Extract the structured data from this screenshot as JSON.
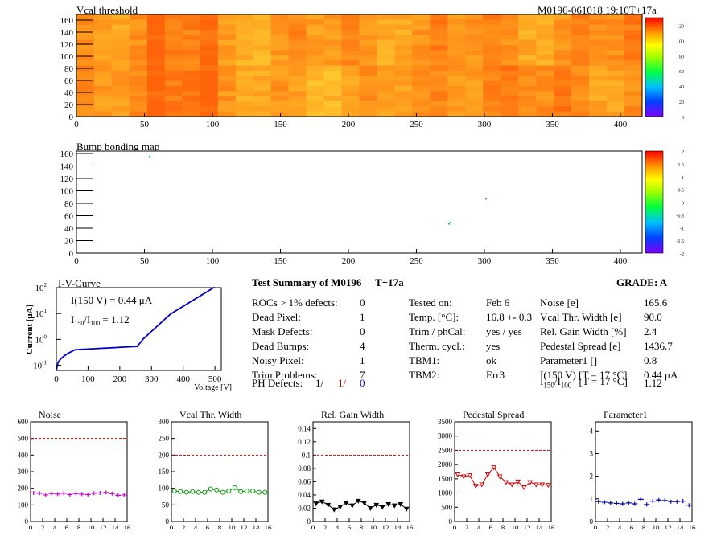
{
  "header": {
    "vcal_title": "Vcal threshold",
    "module_id": "M0196-061018.19:10T+17a",
    "bump_title": "Bump bonding map"
  },
  "maps": {
    "xticks": [
      "0",
      "50",
      "100",
      "150",
      "200",
      "250",
      "300",
      "350",
      "400"
    ],
    "yticks": [
      "0",
      "20",
      "40",
      "60",
      "80",
      "100",
      "120",
      "140",
      "160"
    ],
    "vcal_scale": [
      "0",
      "20",
      "40",
      "60",
      "80",
      "100",
      "120"
    ],
    "bump_scale": [
      "-2",
      "-1.5",
      "-1",
      "-0.5",
      "0",
      "0.5",
      "1",
      "1.5",
      "2"
    ]
  },
  "iv": {
    "title": "I-V-Curve",
    "ylabel": "Current [μA]",
    "xlabel": "Voltage [V]",
    "current_note": "I(150 V) = 0.44 μA",
    "ratio_note_i1": "I",
    "ratio_note_sub1": "150",
    "ratio_note_i2": "/I",
    "ratio_note_sub2": "100",
    "ratio_note_val": "=  1.12",
    "xticks": [
      "0",
      "100",
      "200",
      "300",
      "400",
      "500"
    ],
    "ybase": "10",
    "yexps": [
      "-1",
      "0",
      "1",
      "2"
    ]
  },
  "summary": {
    "title": "Test Summary of M0196",
    "tag": "T+17a",
    "grade": "GRADE:  A",
    "left": [
      {
        "label": "ROCs > 1% defects:",
        "value": "0"
      },
      {
        "label": "Dead Pixel:",
        "value": "1"
      },
      {
        "label": "Mask Defects:",
        "value": "0"
      },
      {
        "label": "Dead Bumps:",
        "value": "4"
      },
      {
        "label": "Noisy Pixel:",
        "value": "1"
      },
      {
        "label": "Trim Problems:",
        "value": "7"
      }
    ],
    "ph_label": "PH Defects:",
    "ph_v1": "1/",
    "ph_v2": "1/",
    "ph_v3": "0",
    "mid": [
      {
        "label": "Tested on:",
        "value": "Feb 6"
      },
      {
        "label": "Temp. [°C]:",
        "value": "16.8 +- 0.3"
      },
      {
        "label": "Trim / phCal:",
        "value": "yes / yes"
      },
      {
        "label": "Therm. cycl.:",
        "value": "yes"
      },
      {
        "label": "TBM1:",
        "value": "ok"
      },
      {
        "label": "TBM2:",
        "value": "Err3"
      }
    ],
    "right": [
      {
        "label": "Noise [e]",
        "value": "165.6"
      },
      {
        "label": "Vcal Thr. Width [e]",
        "value": "90.0"
      },
      {
        "label": "Rel. Gain Width [%]",
        "value": "2.4"
      },
      {
        "label": "Pedestal Spread [e]",
        "value": "1436.7"
      },
      {
        "label": "Parameter1 []",
        "value": "0.8"
      },
      {
        "label": "I(150 V) [T = 17 °C]",
        "value": "0.44 μA"
      }
    ],
    "ratio_i1": "I",
    "ratio_sub1": "150",
    "ratio_i2": "/I",
    "ratio_sub2": "100",
    "ratio_cond": "[T = 17 °C]",
    "ratio_value": "1.12"
  },
  "chart_data": [
    {
      "type": "scatter",
      "title": "Noise",
      "color": "#cc00cc",
      "marker": "plus",
      "x": [
        0,
        1,
        2,
        3,
        4,
        5,
        6,
        7,
        8,
        9,
        10,
        11,
        12,
        13,
        14,
        15
      ],
      "values": [
        172,
        170,
        160,
        168,
        165,
        170,
        162,
        168,
        165,
        162,
        170,
        172,
        175,
        168,
        158,
        160
      ],
      "limit": 500,
      "ylim": [
        0,
        600
      ],
      "yticks": [
        "0",
        "100",
        "200",
        "300",
        "400",
        "500",
        "600"
      ],
      "xticks": [
        "0",
        "2",
        "4",
        "6",
        "8",
        "10",
        "12",
        "14",
        "16"
      ]
    },
    {
      "type": "line",
      "title": "Vcal Thr. Width",
      "color": "#009900",
      "marker": "circle",
      "x": [
        0,
        1,
        2,
        3,
        4,
        5,
        6,
        7,
        8,
        9,
        10,
        11,
        12,
        13,
        14,
        15
      ],
      "values": [
        92,
        90,
        88,
        90,
        88,
        88,
        98,
        95,
        88,
        92,
        102,
        90,
        92,
        92,
        88,
        88
      ],
      "limit": 200,
      "ylim": [
        0,
        300
      ],
      "yticks": [
        "0",
        "50",
        "100",
        "150",
        "200",
        "250",
        "300"
      ],
      "xticks": [
        "0",
        "2",
        "4",
        "6",
        "8",
        "10",
        "12",
        "14",
        "16"
      ]
    },
    {
      "type": "line",
      "title": "Rel. Gain Width",
      "color": "#000000",
      "marker": "triangle",
      "x": [
        0,
        1,
        2,
        3,
        4,
        5,
        6,
        7,
        8,
        9,
        10,
        11,
        12,
        13,
        14,
        15
      ],
      "values": [
        0.027,
        0.03,
        0.025,
        0.018,
        0.022,
        0.028,
        0.024,
        0.031,
        0.028,
        0.02,
        0.025,
        0.022,
        0.026,
        0.024,
        0.026,
        0.019
      ],
      "limit": 0.1,
      "ylim": [
        0,
        0.15
      ],
      "yticks": [
        "0",
        "0.02",
        "0.04",
        "0.06",
        "0.08",
        "0.1",
        "0.12",
        "0.14"
      ],
      "xticks": [
        "0",
        "2",
        "4",
        "6",
        "8",
        "10",
        "12",
        "14",
        "16"
      ]
    },
    {
      "type": "line",
      "title": "Pedestal Spread",
      "color": "#cc0000",
      "marker": "triangle",
      "x": [
        0,
        1,
        2,
        3,
        4,
        5,
        6,
        7,
        8,
        9,
        10,
        11,
        12,
        13,
        14,
        15
      ],
      "values": [
        1650,
        1580,
        1620,
        1250,
        1300,
        1650,
        1900,
        1580,
        1380,
        1300,
        1400,
        1200,
        1380,
        1300,
        1300,
        1280
      ],
      "limit": 2500,
      "ylim": [
        0,
        3500
      ],
      "yticks": [
        "0",
        "500",
        "1000",
        "1500",
        "2000",
        "2500",
        "3000",
        "3500"
      ],
      "xticks": [
        "0",
        "2",
        "4",
        "6",
        "8",
        "10",
        "12",
        "14",
        "16"
      ]
    },
    {
      "type": "scatter",
      "title": "Parameter1",
      "color": "#000099",
      "marker": "plus",
      "x": [
        0,
        1,
        2,
        3,
        4,
        5,
        6,
        7,
        8,
        9,
        10,
        11,
        12,
        13,
        14,
        15
      ],
      "values": [
        0.88,
        0.85,
        0.82,
        0.8,
        0.78,
        0.82,
        0.78,
        0.98,
        0.75,
        0.9,
        0.95,
        0.93,
        0.88,
        0.88,
        0.9,
        0.72
      ],
      "ylim": [
        0,
        4.4
      ],
      "yticks": [
        "0",
        "1",
        "2",
        "3",
        "4"
      ],
      "xticks": [
        "0",
        "2",
        "4",
        "6",
        "8",
        "10",
        "12",
        "14",
        "16"
      ]
    }
  ]
}
